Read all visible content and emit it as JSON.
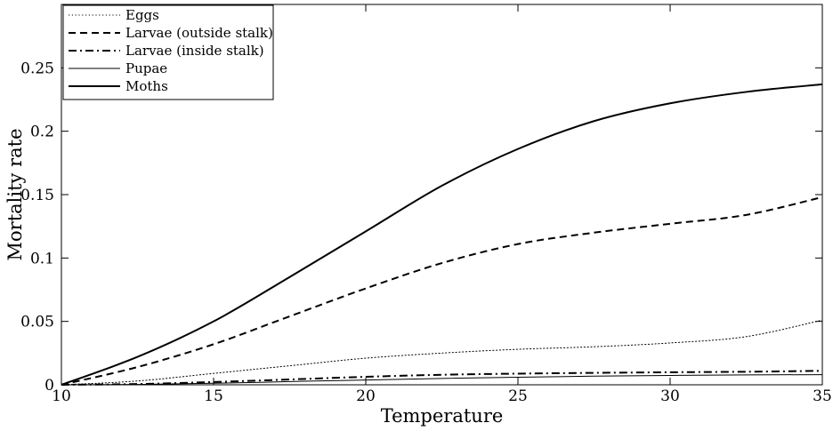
{
  "chart_data": {
    "type": "line",
    "xlabel": "Temperature",
    "ylabel": "Mortality rate",
    "xlim": [
      10,
      35
    ],
    "ylim": [
      0,
      0.3
    ],
    "xticks": [
      10,
      15,
      20,
      25,
      30,
      35
    ],
    "xtick_labels": [
      "10",
      "15",
      "20",
      "25",
      "30",
      "35"
    ],
    "yticks": [
      0,
      0.05,
      0.1,
      0.15,
      0.2,
      0.25
    ],
    "ytick_labels": [
      "0",
      "0.05",
      "0.1",
      "0.15",
      "0.2",
      "0.25"
    ],
    "grid": false,
    "legend_position": "top-left",
    "x": [
      10,
      12.5,
      15,
      17.5,
      20,
      22.5,
      25,
      27.5,
      30,
      32.5,
      35
    ],
    "series": [
      {
        "name": "Eggs",
        "style": "dotted",
        "width": 1,
        "color": "#000000",
        "values": [
          0,
          0.003,
          0.009,
          0.015,
          0.021,
          0.025,
          0.028,
          0.03,
          0.033,
          0.038,
          0.051
        ]
      },
      {
        "name": "Larvae (outside stalk)",
        "style": "dashed",
        "width": 2,
        "color": "#000000",
        "values": [
          0,
          0.014,
          0.032,
          0.054,
          0.076,
          0.096,
          0.111,
          0.12,
          0.127,
          0.134,
          0.148
        ]
      },
      {
        "name": "Larvae (inside stalk)",
        "style": "dashdot",
        "width": 2,
        "color": "#000000",
        "values": [
          0,
          0.0006,
          0.0022,
          0.0042,
          0.0063,
          0.0079,
          0.0088,
          0.0094,
          0.0099,
          0.0103,
          0.011
        ]
      },
      {
        "name": "Pupae",
        "style": "solid",
        "width": 1,
        "color": "#000000",
        "values": [
          0,
          0.0003,
          0.0012,
          0.0025,
          0.0038,
          0.005,
          0.006,
          0.0068,
          0.0074,
          0.0078,
          0.008
        ]
      },
      {
        "name": "Moths",
        "style": "solid",
        "width": 2,
        "color": "#000000",
        "values": [
          0,
          0.022,
          0.05,
          0.085,
          0.121,
          0.157,
          0.186,
          0.208,
          0.222,
          0.231,
          0.237
        ]
      }
    ]
  }
}
